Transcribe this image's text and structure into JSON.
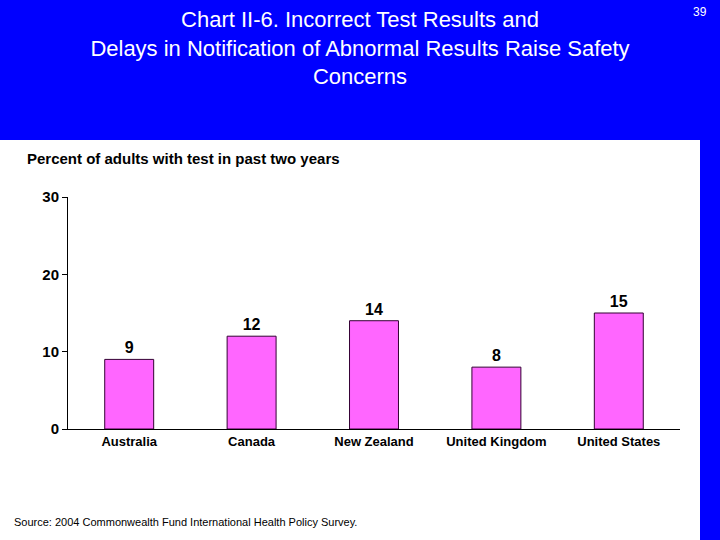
{
  "chart_data": {
    "type": "bar",
    "title": "Chart II-6. Incorrect Test Results and\nDelays in Notification of Abnormal Results Raise Safety\nConcerns",
    "ylabel": "Percent of adults with test in past two years",
    "source": "Source: 2004 Commonwealth Fund International Health Policy Survey.",
    "page_label": "39",
    "categories": [
      "Australia",
      "Canada",
      "New Zealand",
      "United Kingdom",
      "United States"
    ],
    "values": [
      9,
      12,
      14,
      8,
      15
    ],
    "color": "#ff66ff",
    "ylim": [
      0,
      30
    ],
    "yticks": [
      0,
      10,
      20,
      30
    ],
    "grid": false,
    "data_labels": true
  }
}
